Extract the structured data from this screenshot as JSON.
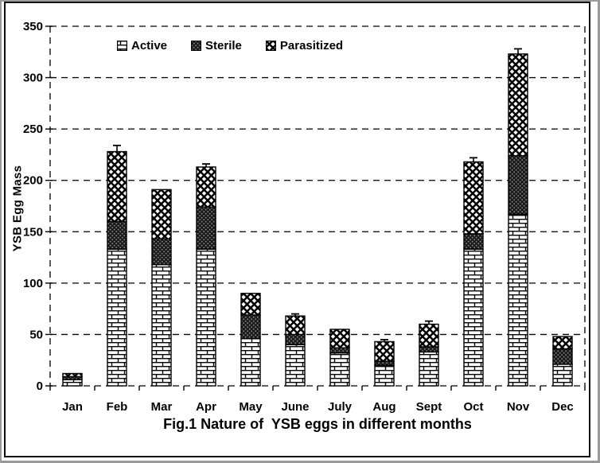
{
  "figure": {
    "title": "Fig.1 Nature of  YSB eggs in different months",
    "ylabel": "YSB Egg Mass"
  },
  "chart_data": {
    "type": "bar",
    "stacked": true,
    "title": "Fig.1 Nature of  YSB eggs in different months",
    "xlabel": "",
    "ylabel": "YSB Egg Mass",
    "ylim": [
      0,
      350
    ],
    "yticks": [
      0,
      50,
      100,
      150,
      200,
      250,
      300,
      350
    ],
    "grid": "horizontal-dashed",
    "legend_position": "top-left-inside",
    "categories": [
      "Jan",
      "Feb",
      "Mar",
      "Apr",
      "May",
      "June",
      "July",
      "Aug",
      "Sept",
      "Oct",
      "Nov",
      "Dec"
    ],
    "series": [
      {
        "name": "Active",
        "pattern": "brick",
        "values": [
          6,
          133,
          118,
          133,
          46,
          40,
          32,
          20,
          33,
          133,
          167,
          21
        ]
      },
      {
        "name": "Sterile",
        "pattern": "speckle",
        "values": [
          3,
          27,
          25,
          41,
          23,
          10,
          5,
          4,
          5,
          15,
          57,
          15
        ]
      },
      {
        "name": "Parasitized",
        "pattern": "weave",
        "values": [
          3,
          68,
          48,
          39,
          21,
          18,
          18,
          19,
          22,
          70,
          99,
          12
        ]
      }
    ],
    "totals": [
      12,
      228,
      191,
      213,
      90,
      68,
      55,
      43,
      60,
      218,
      323,
      48
    ],
    "error_bars": [
      0,
      6,
      0,
      3,
      0,
      2,
      0,
      2,
      3,
      4,
      5,
      0
    ],
    "colors": {
      "ink": "#000000",
      "background": "#ffffff"
    }
  }
}
